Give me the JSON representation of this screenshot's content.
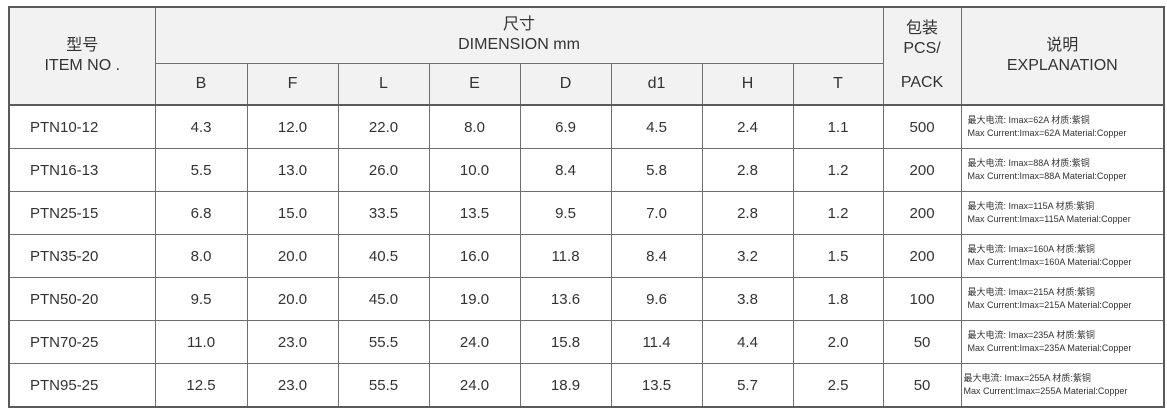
{
  "header": {
    "model_cn": "型号",
    "model_en": "ITEM NO .",
    "dim_cn": "尺寸",
    "dim_en": "DIMENSION mm",
    "pack_cn": "包装",
    "pack_en1": "PCS/",
    "pack_en2": "PACK",
    "explain_cn": "说明",
    "explain_en": "EXPLANATION",
    "dims": [
      "B",
      "F",
      "L",
      "E",
      "D",
      "d1",
      "H",
      "T"
    ]
  },
  "rows": [
    {
      "model": "PTN10-12",
      "vals": [
        "4.3",
        "12.0",
        "22.0",
        "8.0",
        "6.9",
        "4.5",
        "2.4",
        "1.1"
      ],
      "pack": "500",
      "exp1": "最大电流: Imax=62A      材质:紫铜",
      "exp2": "Max Current:Imax=62A  Material:Copper"
    },
    {
      "model": "PTN16-13",
      "vals": [
        "5.5",
        "13.0",
        "26.0",
        "10.0",
        "8.4",
        "5.8",
        "2.8",
        "1.2"
      ],
      "pack": "200",
      "exp1": "最大电流: Imax=88A      材质:紫铜",
      "exp2": "Max Current:Imax=88A  Material:Copper"
    },
    {
      "model": "PTN25-15",
      "vals": [
        "6.8",
        "15.0",
        "33.5",
        "13.5",
        "9.5",
        "7.0",
        "2.8",
        "1.2"
      ],
      "pack": "200",
      "exp1": "最大电流: Imax=115A      材质:紫铜",
      "exp2": "Max Current:Imax=115A  Material:Copper"
    },
    {
      "model": "PTN35-20",
      "vals": [
        "8.0",
        "20.0",
        "40.5",
        "16.0",
        "11.8",
        "8.4",
        "3.2",
        "1.5"
      ],
      "pack": "200",
      "exp1": "最大电流: Imax=160A      材质:紫铜",
      "exp2": "Max Current:Imax=160A  Material:Copper"
    },
    {
      "model": "PTN50-20",
      "vals": [
        "9.5",
        "20.0",
        "45.0",
        "19.0",
        "13.6",
        "9.6",
        "3.8",
        "1.8"
      ],
      "pack": "100",
      "exp1": "最大电流: Imax=215A      材质:紫铜",
      "exp2": "Max Current:Imax=215A  Material:Copper"
    },
    {
      "model": "PTN70-25",
      "vals": [
        "11.0",
        "23.0",
        "55.5",
        "24.0",
        "15.8",
        "11.4",
        "4.4",
        "2.0"
      ],
      "pack": "50",
      "exp1": "最大电流: Imax=235A      材质:紫铜",
      "exp2": "Max Current:Imax=235A  Material:Copper"
    },
    {
      "model": "PTN95-25",
      "vals": [
        "12.5",
        "23.0",
        "55.5",
        "24.0",
        "18.9",
        "13.5",
        "5.7",
        "2.5"
      ],
      "pack": "50",
      "exp1": "最大电流: Imax=255A      材质:紫铜",
      "exp2": "Max Current:Imax=255A  Material:Copper"
    }
  ]
}
